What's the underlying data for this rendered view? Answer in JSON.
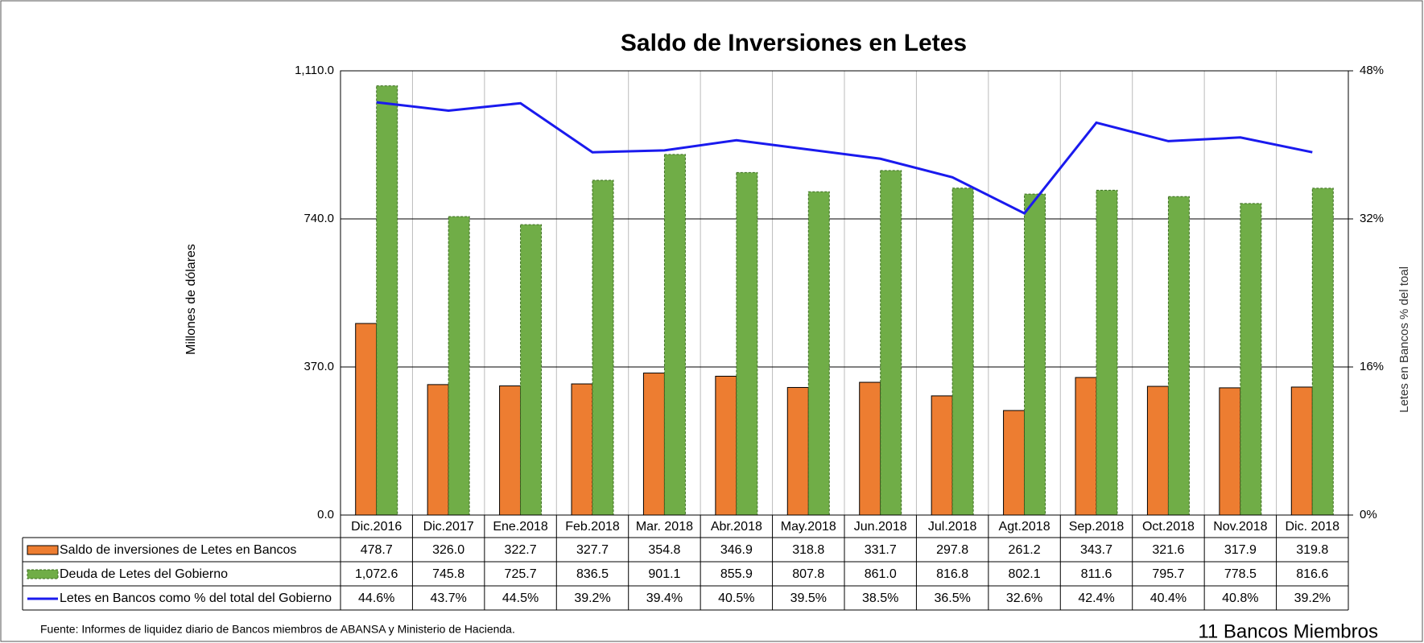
{
  "chart_data": {
    "type": "bar",
    "title": "Saldo de Inversiones en Letes",
    "y_label": "Millones de dólares",
    "y2_label": "Letes en Bancos  % del toal",
    "categories": [
      "Dic.2016",
      "Dic.2017",
      "Ene.2018",
      "Feb.2018",
      "Mar. 2018",
      "Abr.2018",
      "May.2018",
      "Jun.2018",
      "Jul.2018",
      "Agt.2018",
      "Sep.2018",
      "Oct.2018",
      "Nov.2018",
      "Dic. 2018"
    ],
    "series": [
      {
        "name": "Saldo de inversiones de Letes en Bancos",
        "color": "#ed7d31",
        "values": [
          478.7,
          326.0,
          322.7,
          327.7,
          354.8,
          346.9,
          318.8,
          331.7,
          297.8,
          261.2,
          343.7,
          321.6,
          317.9,
          319.8
        ],
        "value_labels": [
          "478.7",
          "326.0",
          "322.7",
          "327.7",
          "354.8",
          "346.9",
          "318.8",
          "331.7",
          "297.8",
          "261.2",
          "343.7",
          "321.6",
          "317.9",
          "319.8"
        ]
      },
      {
        "name": "Deuda de Letes del Gobierno",
        "color": "#70ad47",
        "values": [
          1072.6,
          745.8,
          725.7,
          836.5,
          901.1,
          855.9,
          807.8,
          861.0,
          816.8,
          802.1,
          811.6,
          795.7,
          778.5,
          816.6
        ],
        "value_labels": [
          "1,072.6",
          "745.8",
          "725.7",
          "836.5",
          "901.1",
          "855.9",
          "807.8",
          "861.0",
          "816.8",
          "802.1",
          "811.6",
          "795.7",
          "778.5",
          "816.6"
        ]
      },
      {
        "name": "Letes en Bancos como % del total del Gobierno",
        "color": "#1a1aee",
        "type": "line",
        "axis": "y2",
        "values": [
          44.6,
          43.7,
          44.5,
          39.2,
          39.4,
          40.5,
          39.5,
          38.5,
          36.5,
          32.6,
          42.4,
          40.4,
          40.8,
          39.2
        ],
        "value_labels": [
          "44.6%",
          "43.7%",
          "44.5%",
          "39.2%",
          "39.4%",
          "40.5%",
          "39.5%",
          "38.5%",
          "36.5%",
          "32.6%",
          "42.4%",
          "40.4%",
          "40.8%",
          "39.2%"
        ]
      }
    ],
    "ylim": [
      0,
      1110
    ],
    "yticks": [
      {
        "value": 0,
        "label": "0.0"
      },
      {
        "value": 370,
        "label": "370.0"
      },
      {
        "value": 740,
        "label": "740.0"
      },
      {
        "value": 1110,
        "label": "1,110.0"
      }
    ],
    "y2lim": [
      0,
      48
    ],
    "y2ticks": [
      {
        "value": 0,
        "label": "0%"
      },
      {
        "value": 16,
        "label": "16%"
      },
      {
        "value": 32,
        "label": "32%"
      },
      {
        "value": 48,
        "label": "48%"
      }
    ],
    "grid": true,
    "source": "Fuente: Informes de liquidez diario de Bancos miembros de ABANSA y Ministerio de Hacienda.",
    "annotation": "11 Bancos Miembros"
  }
}
